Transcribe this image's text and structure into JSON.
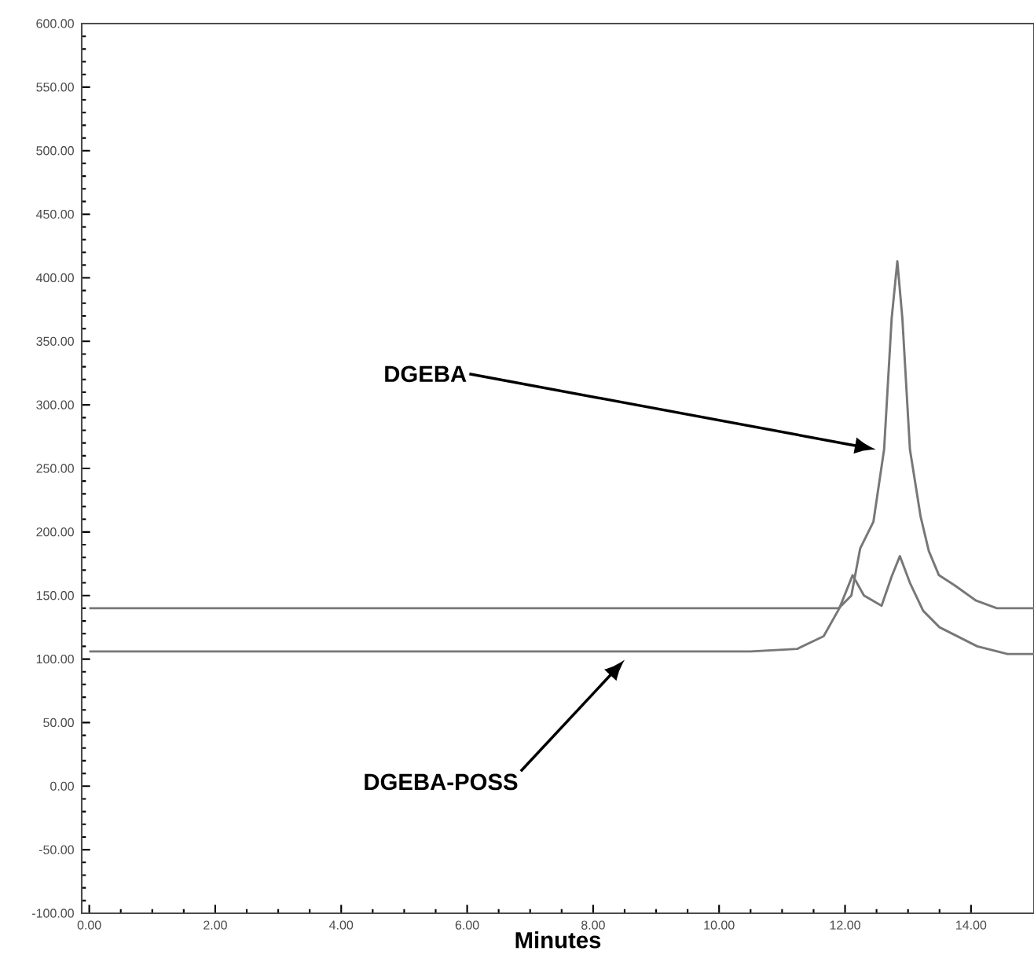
{
  "chart_data": {
    "type": "line",
    "xlabel": "Minutes",
    "xlim": [
      -0.12,
      15.0
    ],
    "ylim": [
      -100,
      600
    ],
    "xticks": [
      {
        "value": 0,
        "label": "0.00"
      },
      {
        "value": 2,
        "label": "2.00"
      },
      {
        "value": 4,
        "label": "4.00"
      },
      {
        "value": 6,
        "label": "6.00"
      },
      {
        "value": 8,
        "label": "8.00"
      },
      {
        "value": 10,
        "label": "10.00"
      },
      {
        "value": 12,
        "label": "12.00"
      },
      {
        "value": 14,
        "label": "14.00"
      }
    ],
    "yticks": [
      {
        "value": -100,
        "label": "-100.00"
      },
      {
        "value": -50,
        "label": "-50.00"
      },
      {
        "value": 0,
        "label": "0.00"
      },
      {
        "value": 50,
        "label": "50.00"
      },
      {
        "value": 100,
        "label": "100.00"
      },
      {
        "value": 150,
        "label": "150.00"
      },
      {
        "value": 200,
        "label": "200.00"
      },
      {
        "value": 250,
        "label": "250.00"
      },
      {
        "value": 300,
        "label": "300.00"
      },
      {
        "value": 350,
        "label": "350.00"
      },
      {
        "value": 400,
        "label": "400.00"
      },
      {
        "value": 450,
        "label": "450.00"
      },
      {
        "value": 500,
        "label": "500.00"
      },
      {
        "value": 550,
        "label": "550.00"
      },
      {
        "value": 600,
        "label": "600.00"
      }
    ],
    "grid": false,
    "marker": "none",
    "line_style": "solid",
    "annotations": [
      "DGEBA",
      "DGEBA-POSS"
    ],
    "series": [
      {
        "color": "#777777",
        "x": [
          0,
          11.9,
          12.1,
          12.24,
          12.45,
          12.62,
          12.74,
          12.83,
          12.91,
          13.03,
          13.2,
          13.33,
          13.49,
          13.74,
          14.08,
          14.41,
          15.0
        ],
        "values": [
          140,
          140,
          150,
          187,
          208,
          265,
          368,
          413,
          368,
          265,
          212,
          185,
          166,
          158,
          146,
          140,
          140
        ]
      },
      {
        "color": "#777777",
        "x": [
          0,
          8.5,
          10.5,
          11.24,
          11.66,
          11.91,
          12.12,
          12.3,
          12.58,
          12.74,
          12.87,
          13.03,
          13.24,
          13.5,
          13.74,
          14.1,
          14.58,
          15.0
        ],
        "values": [
          106,
          106,
          106,
          108,
          118,
          140,
          166,
          150,
          142,
          165,
          181,
          160,
          138,
          125,
          119,
          110,
          104,
          104
        ]
      }
    ]
  }
}
